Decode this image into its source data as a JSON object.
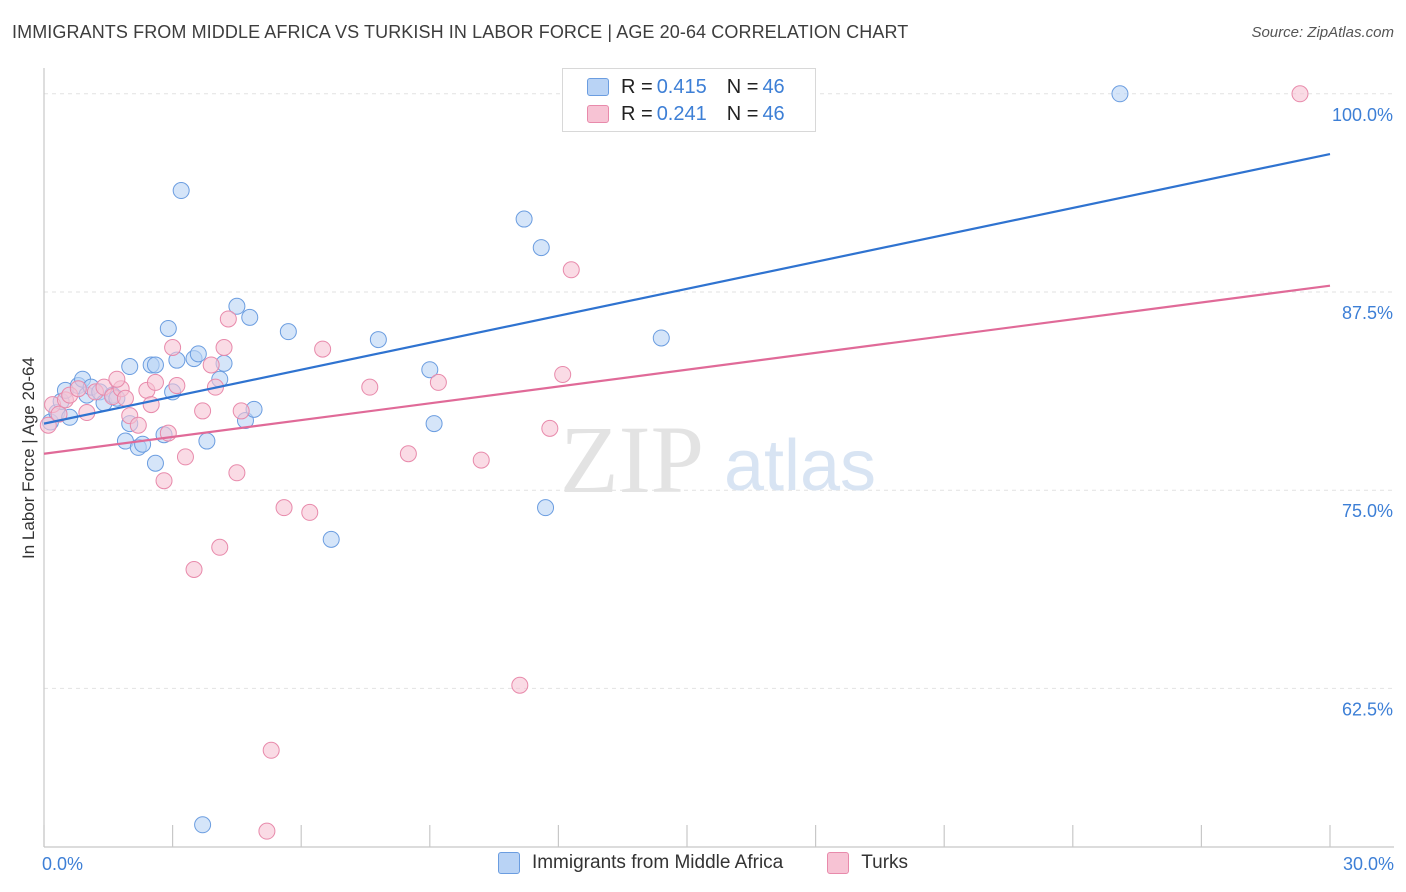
{
  "header": {
    "title": "IMMIGRANTS FROM MIDDLE AFRICA VS TURKISH IN LABOR FORCE | AGE 20-64 CORRELATION CHART",
    "source": "Source: ZipAtlas.com"
  },
  "watermark": {
    "zip": "ZIP",
    "atlas": "atlas"
  },
  "legend": {
    "series1": {
      "r_label": "R = ",
      "r_value": "0.415",
      "n_label": "N = ",
      "n_value": "46"
    },
    "series2": {
      "r_label": "R = ",
      "r_value": "0.241",
      "n_label": "N = ",
      "n_value": "46"
    }
  },
  "colors": {
    "blue_fill": "#b9d3f5",
    "blue_stroke": "#6b9de0",
    "blue_line": "#2f73d0",
    "pink_fill": "#f7c3d4",
    "pink_stroke": "#e88aab",
    "pink_line": "#e06a98",
    "axis_label": "#3d7fd6"
  },
  "chart_data": {
    "type": "scatter",
    "xlabel": "",
    "ylabel": "In Labor Force | Age 20-64",
    "xlim": [
      0,
      30
    ],
    "ylim": [
      52.5,
      101.5
    ],
    "x_tick_labels": [
      {
        "value": 0,
        "label": "0.0%"
      },
      {
        "value": 30,
        "label": "30.0%"
      }
    ],
    "y_ticks": [
      {
        "value": 62.5,
        "label": "62.5%"
      },
      {
        "value": 75.0,
        "label": "75.0%"
      },
      {
        "value": 87.5,
        "label": "87.5%"
      },
      {
        "value": 100.0,
        "label": "100.0%"
      }
    ],
    "grid": true,
    "series": [
      {
        "name": "Immigrants from Middle Africa",
        "color": "#b9d3f5",
        "trend": {
          "x": [
            0,
            30
          ],
          "y": [
            79.2,
            96.2
          ]
        },
        "points": [
          {
            "x": 0.15,
            "y": 79.3
          },
          {
            "x": 0.3,
            "y": 79.9
          },
          {
            "x": 0.4,
            "y": 80.6
          },
          {
            "x": 0.5,
            "y": 81.3
          },
          {
            "x": 0.6,
            "y": 79.6
          },
          {
            "x": 0.8,
            "y": 81.6
          },
          {
            "x": 0.9,
            "y": 82.0
          },
          {
            "x": 1.0,
            "y": 81.0
          },
          {
            "x": 1.1,
            "y": 81.5
          },
          {
            "x": 1.3,
            "y": 81.2
          },
          {
            "x": 1.4,
            "y": 80.5
          },
          {
            "x": 1.6,
            "y": 81.0
          },
          {
            "x": 1.7,
            "y": 80.8
          },
          {
            "x": 1.9,
            "y": 78.1
          },
          {
            "x": 2.0,
            "y": 79.2
          },
          {
            "x": 2.0,
            "y": 82.8
          },
          {
            "x": 2.2,
            "y": 77.7
          },
          {
            "x": 2.3,
            "y": 77.9
          },
          {
            "x": 2.5,
            "y": 82.9
          },
          {
            "x": 2.6,
            "y": 82.9
          },
          {
            "x": 2.6,
            "y": 76.7
          },
          {
            "x": 2.8,
            "y": 78.5
          },
          {
            "x": 2.9,
            "y": 85.2
          },
          {
            "x": 3.0,
            "y": 81.2
          },
          {
            "x": 3.1,
            "y": 83.2
          },
          {
            "x": 3.2,
            "y": 93.9
          },
          {
            "x": 3.5,
            "y": 83.3
          },
          {
            "x": 3.6,
            "y": 83.6
          },
          {
            "x": 3.8,
            "y": 78.1
          },
          {
            "x": 4.1,
            "y": 82.0
          },
          {
            "x": 4.2,
            "y": 83.0
          },
          {
            "x": 4.5,
            "y": 86.6
          },
          {
            "x": 4.8,
            "y": 85.9
          },
          {
            "x": 4.7,
            "y": 79.4
          },
          {
            "x": 4.9,
            "y": 80.1
          },
          {
            "x": 5.7,
            "y": 85.0
          },
          {
            "x": 6.7,
            "y": 71.9
          },
          {
            "x": 7.8,
            "y": 84.5
          },
          {
            "x": 9.0,
            "y": 82.6
          },
          {
            "x": 9.1,
            "y": 79.2
          },
          {
            "x": 11.2,
            "y": 92.1
          },
          {
            "x": 11.6,
            "y": 90.3
          },
          {
            "x": 11.7,
            "y": 73.9
          },
          {
            "x": 14.4,
            "y": 84.6
          },
          {
            "x": 25.1,
            "y": 100.0
          },
          {
            "x": 3.7,
            "y": 53.9
          }
        ]
      },
      {
        "name": "Turks",
        "color": "#f7c3d4",
        "trend": {
          "x": [
            0,
            30
          ],
          "y": [
            77.3,
            87.9
          ]
        },
        "points": [
          {
            "x": 0.1,
            "y": 79.1
          },
          {
            "x": 0.2,
            "y": 80.4
          },
          {
            "x": 0.35,
            "y": 79.8
          },
          {
            "x": 0.5,
            "y": 80.7
          },
          {
            "x": 0.6,
            "y": 81.0
          },
          {
            "x": 0.8,
            "y": 81.4
          },
          {
            "x": 1.0,
            "y": 79.9
          },
          {
            "x": 1.2,
            "y": 81.2
          },
          {
            "x": 1.4,
            "y": 81.5
          },
          {
            "x": 1.6,
            "y": 80.9
          },
          {
            "x": 1.8,
            "y": 81.4
          },
          {
            "x": 1.9,
            "y": 80.8
          },
          {
            "x": 2.0,
            "y": 79.7
          },
          {
            "x": 2.2,
            "y": 79.1
          },
          {
            "x": 2.4,
            "y": 81.3
          },
          {
            "x": 2.5,
            "y": 80.4
          },
          {
            "x": 2.6,
            "y": 81.8
          },
          {
            "x": 2.8,
            "y": 75.6
          },
          {
            "x": 2.9,
            "y": 78.6
          },
          {
            "x": 3.0,
            "y": 84.0
          },
          {
            "x": 3.1,
            "y": 81.6
          },
          {
            "x": 3.3,
            "y": 77.1
          },
          {
            "x": 3.5,
            "y": 70.0
          },
          {
            "x": 3.7,
            "y": 80.0
          },
          {
            "x": 3.9,
            "y": 82.9
          },
          {
            "x": 4.0,
            "y": 81.5
          },
          {
            "x": 4.1,
            "y": 71.4
          },
          {
            "x": 4.2,
            "y": 84.0
          },
          {
            "x": 4.3,
            "y": 85.8
          },
          {
            "x": 4.5,
            "y": 76.1
          },
          {
            "x": 4.6,
            "y": 80.0
          },
          {
            "x": 5.3,
            "y": 58.6
          },
          {
            "x": 5.2,
            "y": 53.5
          },
          {
            "x": 5.6,
            "y": 73.9
          },
          {
            "x": 6.2,
            "y": 73.6
          },
          {
            "x": 6.5,
            "y": 83.9
          },
          {
            "x": 7.6,
            "y": 81.5
          },
          {
            "x": 8.5,
            "y": 77.3
          },
          {
            "x": 9.2,
            "y": 81.8
          },
          {
            "x": 10.2,
            "y": 76.9
          },
          {
            "x": 11.1,
            "y": 62.7
          },
          {
            "x": 11.8,
            "y": 78.9
          },
          {
            "x": 12.1,
            "y": 82.3
          },
          {
            "x": 12.3,
            "y": 88.9
          },
          {
            "x": 29.3,
            "y": 100.0
          },
          {
            "x": 1.7,
            "y": 82.0
          }
        ]
      }
    ]
  }
}
